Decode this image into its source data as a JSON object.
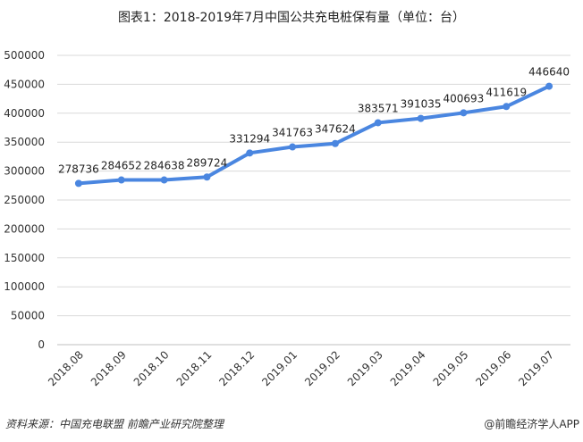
{
  "chart_data": {
    "type": "line",
    "title": "图表1：2018-2019年7月中国公共充电桩保有量（单位：台）",
    "categories": [
      "2018.08",
      "2018.09",
      "2018.10",
      "2018.11",
      "2018.12",
      "2019.01",
      "2019.02",
      "2019.03",
      "2019.04",
      "2019.05",
      "2019.06",
      "2019.07"
    ],
    "series": [
      {
        "name": "公共充电桩保有量",
        "values": [
          278736,
          284652,
          284638,
          289724,
          331294,
          341763,
          347624,
          383571,
          391035,
          400693,
          411619,
          446640
        ]
      }
    ],
    "xlabel": "",
    "ylabel": "",
    "ylim": [
      0,
      500000
    ],
    "yticks": [
      0,
      50000,
      100000,
      150000,
      200000,
      250000,
      300000,
      350000,
      400000,
      450000,
      500000
    ],
    "grid": true,
    "line_color": "#4a86e0"
  },
  "footer": {
    "source": "资料来源：中国充电联盟 前瞻产业研究院整理",
    "brand": "@前瞻经济学人APP"
  }
}
